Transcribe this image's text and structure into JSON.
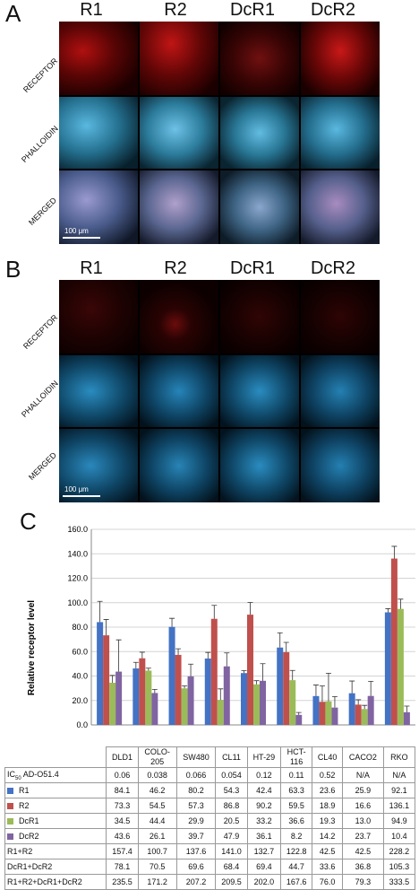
{
  "panel_a": {
    "letter": "A",
    "columns": [
      "R1",
      "R2",
      "DcR1",
      "DcR2"
    ],
    "rows": [
      "RECEPTOR",
      "PHALLOIDIN",
      "MERGED"
    ],
    "scale_label": "100  μm"
  },
  "panel_b": {
    "letter": "B",
    "columns": [
      "R1",
      "R2",
      "DcR1",
      "DcR2"
    ],
    "rows": [
      "RECEPTOR",
      "PHALLOIDIN",
      "MERGED"
    ],
    "scale_label": "100  μm"
  },
  "panel_c": {
    "letter": "C"
  },
  "colors": {
    "R1": "#4472c4",
    "R2": "#c0504d",
    "DcR1": "#9bbb59",
    "DcR2": "#8064a2",
    "receptor": "#c01818",
    "phalloidin": "#3aa8d8"
  },
  "chart_data": {
    "type": "bar",
    "ylabel": "Relative receptor level",
    "ylim": [
      0,
      160
    ],
    "yticks": [
      "0.0",
      "20.0",
      "40.0",
      "60.0",
      "80.0",
      "100.0",
      "120.0",
      "140.0",
      "160.0"
    ],
    "grid": true,
    "categories": [
      "DLD1",
      "COLO-205",
      "SW480",
      "CL11",
      "HT-29",
      "HCT-116",
      "CL40",
      "CACO2",
      "RKO"
    ],
    "series": [
      {
        "name": "R1",
        "values": [
          84.1,
          46.2,
          80.2,
          54.3,
          42.4,
          63.3,
          23.6,
          25.9,
          92.1
        ],
        "errors": [
          17,
          5,
          7,
          5,
          2,
          12,
          9,
          10,
          3
        ]
      },
      {
        "name": "R2",
        "values": [
          73.3,
          54.5,
          57.3,
          86.8,
          90.2,
          59.5,
          18.9,
          16.6,
          136.1
        ],
        "errors": [
          13,
          5,
          5,
          11,
          10,
          8,
          13,
          4,
          10
        ]
      },
      {
        "name": "DcR1",
        "values": [
          34.5,
          44.4,
          29.9,
          20.5,
          33.2,
          36.6,
          19.3,
          13.0,
          94.9
        ],
        "errors": [
          6,
          2,
          2,
          9,
          3,
          8,
          23,
          3,
          8
        ]
      },
      {
        "name": "DcR2",
        "values": [
          43.6,
          26.1,
          39.7,
          47.9,
          36.1,
          8.2,
          14.2,
          23.7,
          10.4
        ],
        "errors": [
          26,
          3,
          10,
          11,
          14,
          2,
          9,
          12,
          5
        ]
      }
    ]
  },
  "table": {
    "header_cells": [
      "DLD1",
      "COLO-\n205",
      "SW480",
      "CL11",
      "HT-29",
      "HCT-\n116",
      "CL40",
      "CACO2",
      "RKO"
    ],
    "rows": [
      {
        "label": "IC50 AD-O51.4",
        "label_main": "IC",
        "label_sub": "50",
        "label_rest": " AD-O51.4",
        "values": [
          "0.06",
          "0.038",
          "0.066",
          "0.054",
          "0.12",
          "0.11",
          "0.52",
          "N/A",
          "N/A"
        ]
      },
      {
        "label": "R1",
        "swatch": "R1",
        "values": [
          "84.1",
          "46.2",
          "80.2",
          "54.3",
          "42.4",
          "63.3",
          "23.6",
          "25.9",
          "92.1"
        ]
      },
      {
        "label": "R2",
        "swatch": "R2",
        "values": [
          "73.3",
          "54.5",
          "57.3",
          "86.8",
          "90.2",
          "59.5",
          "18.9",
          "16.6",
          "136.1"
        ]
      },
      {
        "label": "DcR1",
        "swatch": "DcR1",
        "values": [
          "34.5",
          "44.4",
          "29.9",
          "20.5",
          "33.2",
          "36.6",
          "19.3",
          "13.0",
          "94.9"
        ]
      },
      {
        "label": "DcR2",
        "swatch": "DcR2",
        "values": [
          "43.6",
          "26.1",
          "39.7",
          "47.9",
          "36.1",
          "8.2",
          "14.2",
          "23.7",
          "10.4"
        ]
      },
      {
        "label": "R1+R2",
        "values": [
          "157.4",
          "100.7",
          "137.6",
          "141.0",
          "132.7",
          "122.8",
          "42.5",
          "42.5",
          "228.2"
        ]
      },
      {
        "label": "DcR1+DcR2",
        "values": [
          "78.1",
          "70.5",
          "69.6",
          "68.4",
          "69.4",
          "44.7",
          "33.6",
          "36.8",
          "105.3"
        ]
      },
      {
        "label": "R1+R2+DcR1+DcR2",
        "values": [
          "235.5",
          "171.2",
          "207.2",
          "209.5",
          "202.0",
          "167.6",
          "76.0",
          "79.3",
          "333.5"
        ]
      }
    ]
  }
}
